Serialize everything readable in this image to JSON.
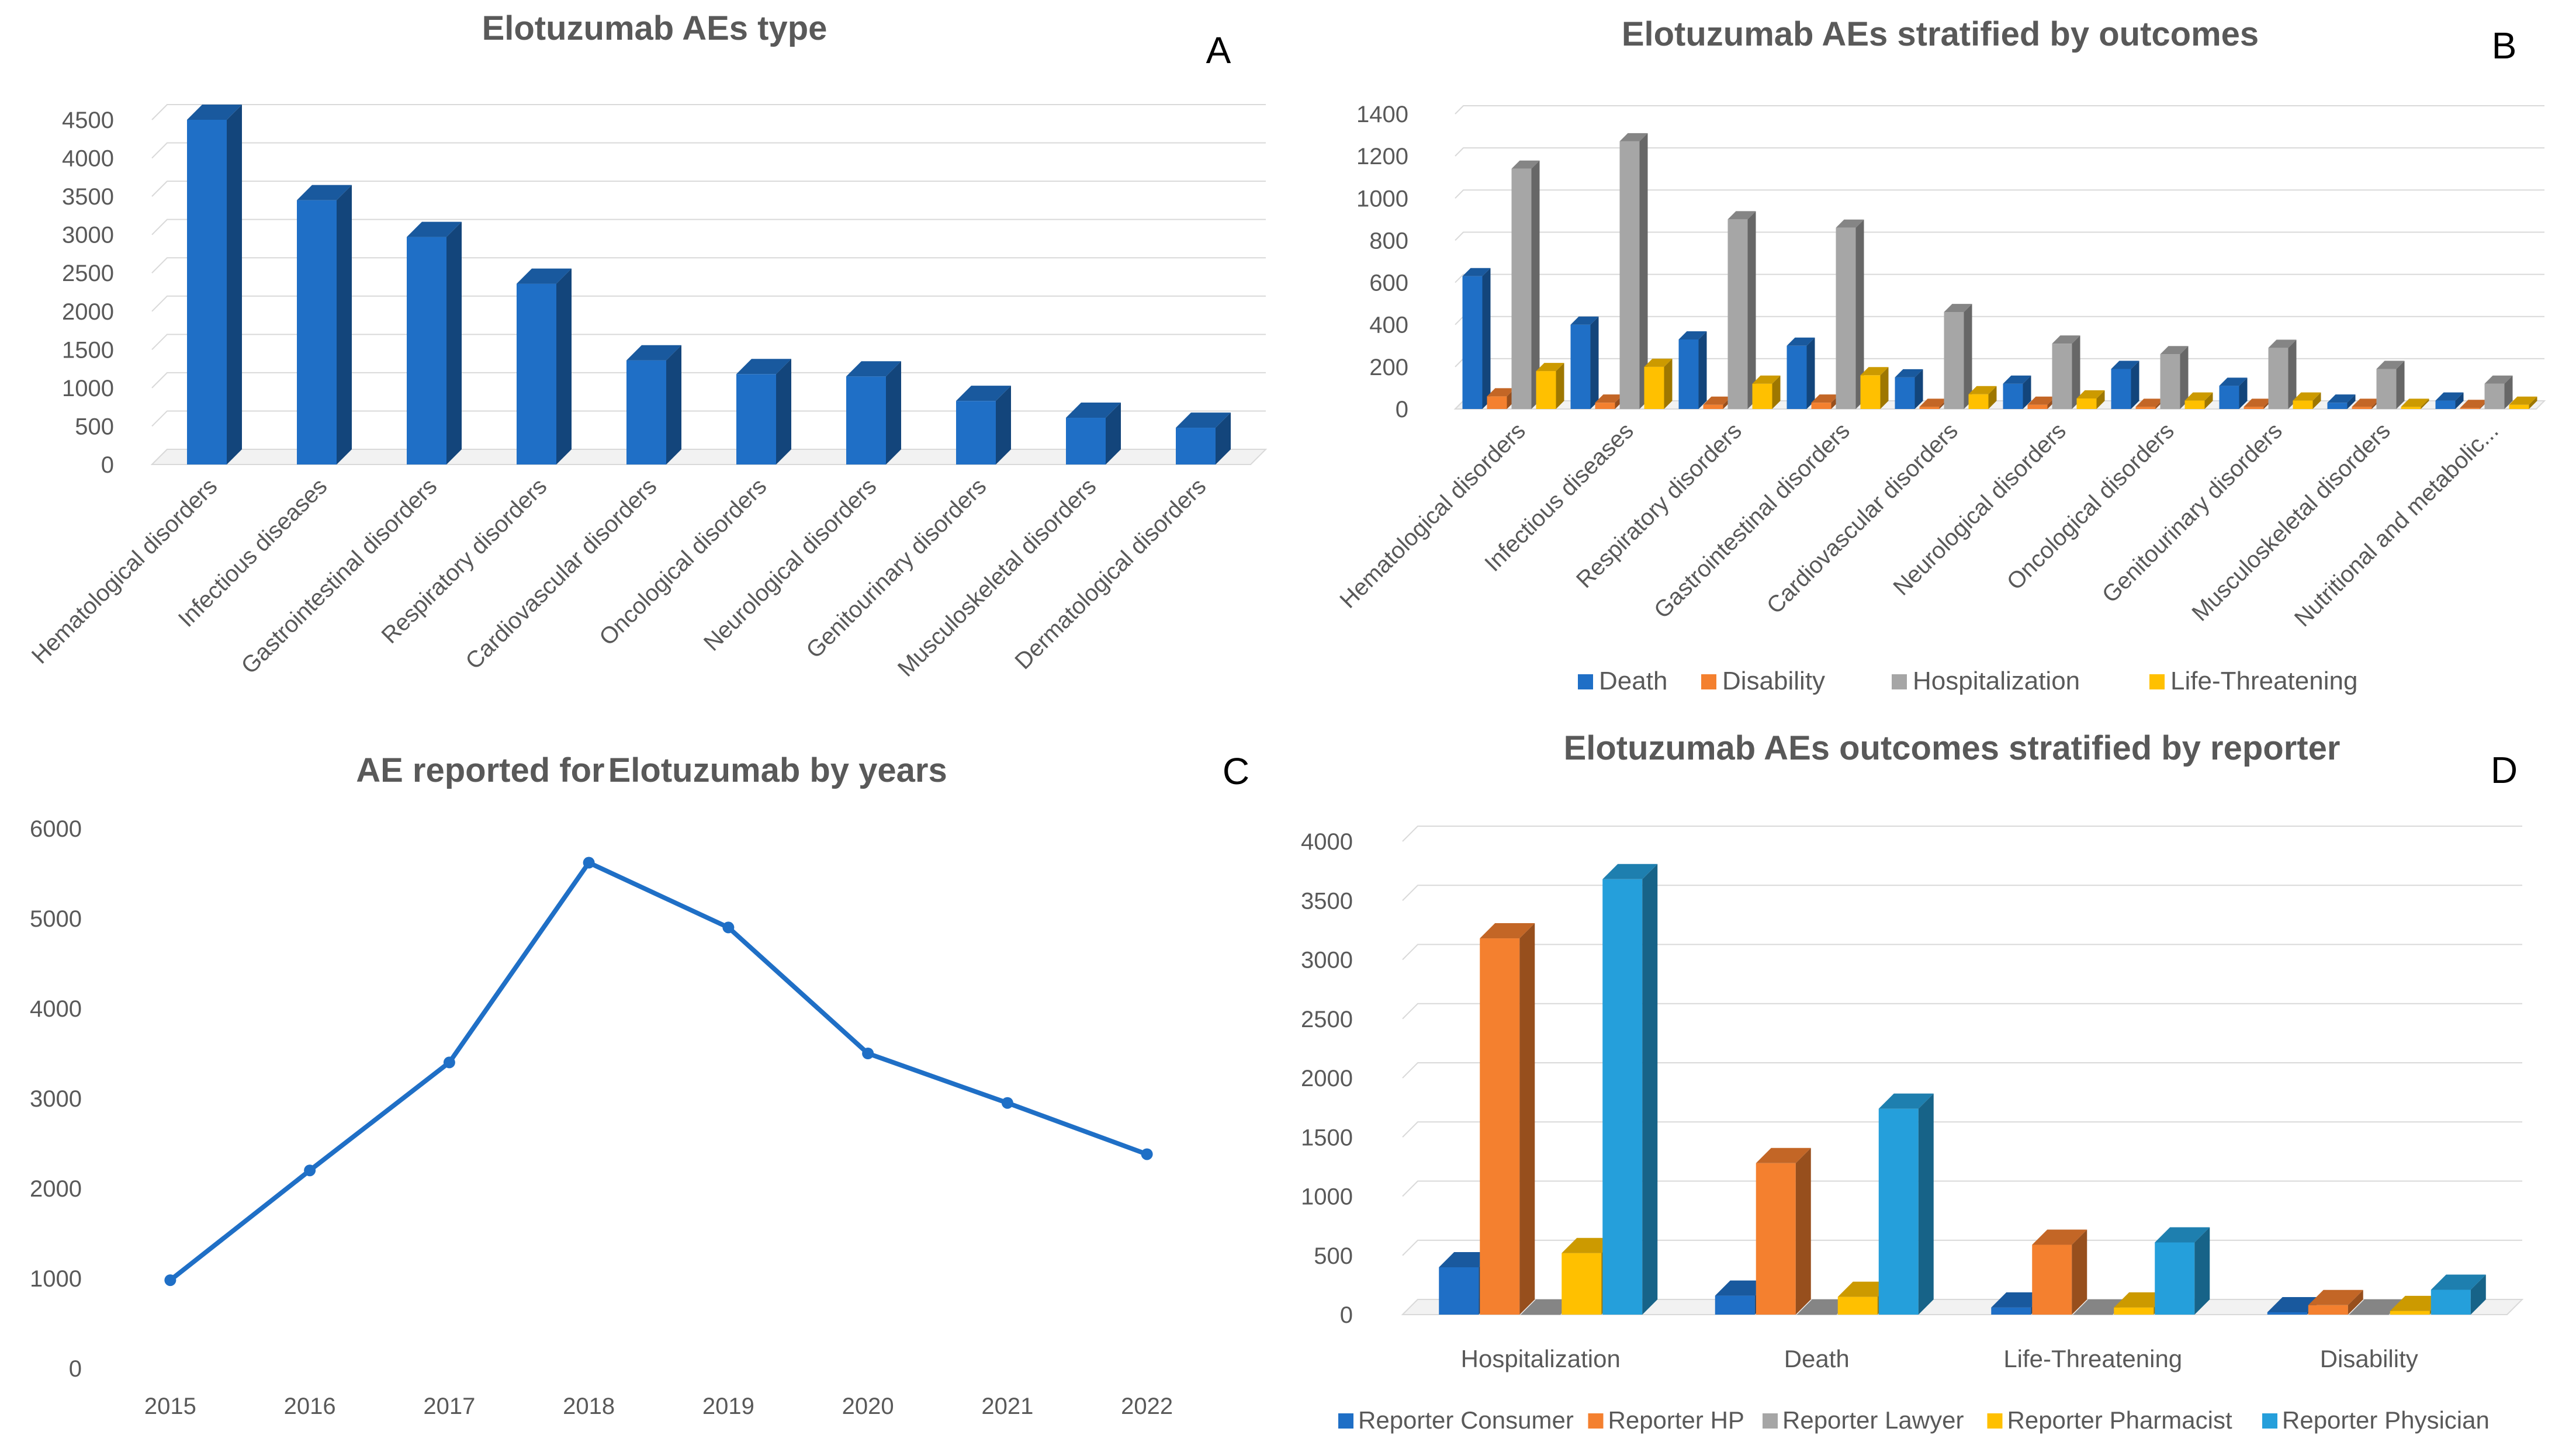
{
  "chart_data": [
    {
      "panel": "A",
      "type": "bar",
      "title": "Elotuzumab AEs type",
      "categories": [
        "Hematological disorders",
        "Infectious diseases",
        "Gastrointestinal disorders",
        "Respiratory disorders",
        "Cardiovascular disorders",
        "Oncological disorders",
        "Neurological disorders",
        "Genitourinary disorders",
        "Musculoskeletal disorders",
        "Dermatological disorders"
      ],
      "values": [
        4500,
        3450,
        2970,
        2360,
        1360,
        1180,
        1150,
        830,
        610,
        480
      ],
      "ylim": [
        0,
        4500
      ],
      "yticks": [
        "0",
        "500",
        "1000",
        "1500",
        "2000",
        "2500",
        "3000",
        "3500",
        "4000",
        "4500"
      ],
      "xlabel": "",
      "ylabel": "",
      "colors": [
        "#1f6fc6"
      ],
      "legend": "none"
    },
    {
      "panel": "B",
      "type": "bar",
      "title": "Elotuzumab AEs stratified by outcomes",
      "categories": [
        "Hematological disorders",
        "Infectious diseases",
        "Respiratory disorders",
        "Gastrointestinal disorders",
        "Cardiovascular disorders",
        "Neurological disorders",
        "Oncological disorders",
        "Genitourinary disorders",
        "Musculoskeletal disorders",
        "Nutritional and metabolic..."
      ],
      "series": [
        {
          "name": "Death",
          "color": "#1f6fc6",
          "values": [
            630,
            400,
            330,
            300,
            150,
            120,
            190,
            110,
            30,
            40
          ]
        },
        {
          "name": "Disability",
          "color": "#f4802f",
          "values": [
            60,
            30,
            20,
            30,
            10,
            20,
            10,
            10,
            10,
            5
          ]
        },
        {
          "name": "Hospitalization",
          "color": "#a6a6a6",
          "values": [
            1140,
            1270,
            900,
            860,
            460,
            310,
            260,
            290,
            190,
            120
          ]
        },
        {
          "name": "Life-Threatening",
          "color": "#ffc000",
          "values": [
            180,
            200,
            120,
            160,
            70,
            50,
            40,
            40,
            10,
            20
          ]
        }
      ],
      "ylim": [
        0,
        1400
      ],
      "yticks": [
        "0",
        "200",
        "400",
        "600",
        "800",
        "1000",
        "1200",
        "1400"
      ],
      "xlabel": "",
      "ylabel": "",
      "legend": "bottom"
    },
    {
      "panel": "C",
      "type": "line",
      "title": "AE reported for Elotuzumab by years",
      "x": [
        "2015",
        "2016",
        "2017",
        "2018",
        "2019",
        "2020",
        "2021",
        "2022"
      ],
      "values": [
        980,
        2200,
        3400,
        5620,
        4900,
        3500,
        2950,
        2380
      ],
      "ylim": [
        0,
        6000
      ],
      "yticks": [
        "0",
        "1000",
        "2000",
        "3000",
        "4000",
        "5000",
        "6000"
      ],
      "xlabel": "",
      "ylabel": "",
      "colors": [
        "#1f6fc6"
      ],
      "legend": "none"
    },
    {
      "panel": "D",
      "type": "bar",
      "title": "Elotuzumab AEs outcomes stratified by reporter",
      "categories": [
        "Hospitalization",
        "Death",
        "Life-Threatening",
        "Disability"
      ],
      "series": [
        {
          "name": "Reporter Consumer",
          "color": "#1f6fc6",
          "values": [
            400,
            160,
            60,
            20
          ]
        },
        {
          "name": "Reporter HP",
          "color": "#f4802f",
          "values": [
            3180,
            1280,
            590,
            80
          ]
        },
        {
          "name": "Reporter Lawyer",
          "color": "#a6a6a6",
          "values": [
            0,
            0,
            0,
            0
          ]
        },
        {
          "name": "Reporter Pharmacist",
          "color": "#ffc000",
          "values": [
            520,
            150,
            60,
            30
          ]
        },
        {
          "name": "Reporter Physician",
          "color": "#259fdb",
          "values": [
            3680,
            1740,
            610,
            210
          ]
        }
      ],
      "ylim": [
        0,
        4000
      ],
      "yticks": [
        "0",
        "500",
        "1000",
        "1500",
        "2000",
        "2500",
        "3000",
        "3500",
        "4000"
      ],
      "xlabel": "",
      "ylabel": "",
      "legend": "bottom"
    }
  ],
  "panel_labels": {
    "a": "A",
    "b": "B",
    "c": "C",
    "d": "D"
  },
  "titles": {
    "a": "Elotuzumab AEs type",
    "b": "Elotuzumab AEs stratified by outcomes",
    "c_part1": "AE reported for",
    "c_part2": "Elotuzumab by years",
    "d": "Elotuzumab AEs outcomes stratified by reporter"
  }
}
